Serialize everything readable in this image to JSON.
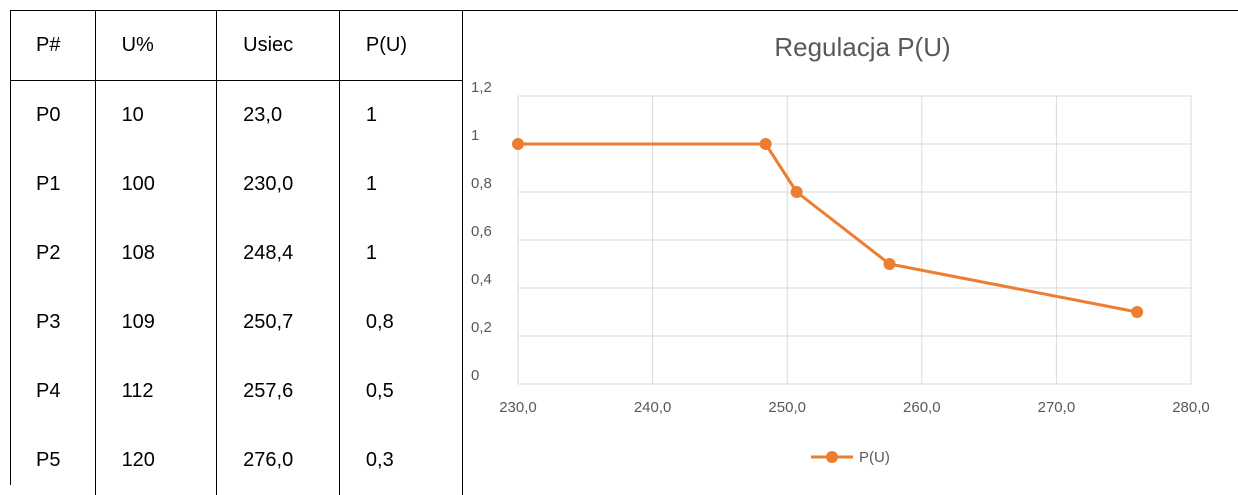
{
  "table": {
    "headers": [
      "P#",
      "U%",
      "Usiec",
      "P(U)"
    ],
    "rows": [
      [
        "P0",
        "10",
        "23,0",
        "1"
      ],
      [
        "P1",
        "100",
        "230,0",
        "1"
      ],
      [
        "P2",
        "108",
        "248,4",
        "1"
      ],
      [
        "P3",
        "109",
        "250,7",
        "0,8"
      ],
      [
        "P4",
        "112",
        "257,6",
        "0,5"
      ],
      [
        "P5",
        "120",
        "276,0",
        "0,3"
      ]
    ]
  },
  "chart_data": {
    "type": "scatter",
    "title": "Regulacja P(U)",
    "xlabel": "",
    "ylabel": "",
    "xlim": [
      230,
      280
    ],
    "ylim": [
      0,
      1.2
    ],
    "x_ticks": [
      "230,0",
      "240,0",
      "250,0",
      "260,0",
      "270,0",
      "280,0"
    ],
    "y_ticks": [
      "0",
      "0,2",
      "0,4",
      "0,6",
      "0,8",
      "1",
      "1,2"
    ],
    "grid": true,
    "legend": "bottom",
    "series": [
      {
        "name": "P(U)",
        "color": "#ED7D31",
        "x": [
          230.0,
          248.4,
          250.7,
          257.6,
          276.0
        ],
        "y": [
          1,
          1,
          0.8,
          0.5,
          0.3
        ]
      }
    ]
  }
}
